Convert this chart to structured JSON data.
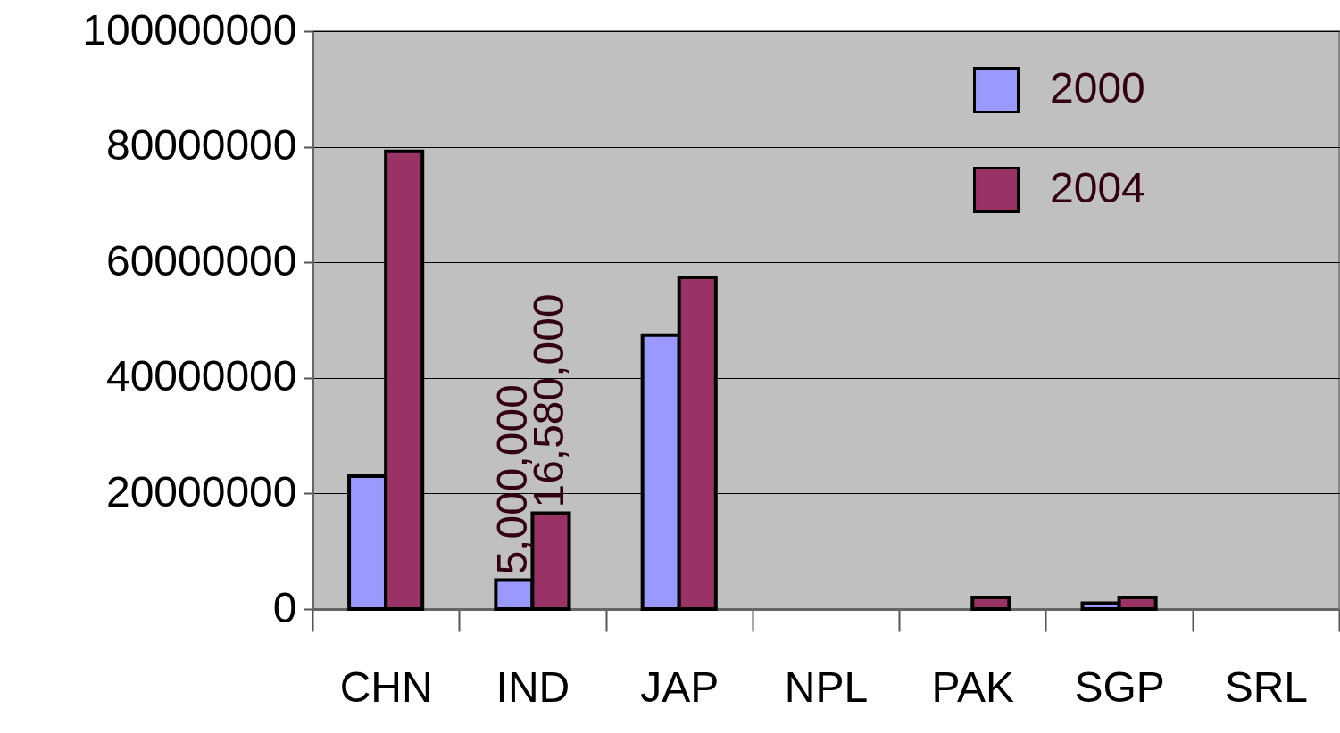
{
  "chart_data": {
    "type": "bar",
    "categories": [
      "CHN",
      "IND",
      "JAP",
      "NPL",
      "PAK",
      "SGP",
      "SRL"
    ],
    "series": [
      {
        "name": "2000",
        "color": "#9999ff",
        "values": [
          23000000,
          5000000,
          47400000,
          null,
          null,
          1000000,
          null
        ],
        "value_labels": [
          null,
          "5,000,000",
          null,
          null,
          null,
          null,
          null
        ]
      },
      {
        "name": "2004",
        "color": "#993366",
        "values": [
          79200000,
          16580000,
          57400000,
          null,
          2000000,
          2000000,
          null
        ],
        "value_labels": [
          null,
          "16,580,000",
          null,
          null,
          null,
          null,
          null
        ]
      }
    ],
    "ylim": [
      0,
      100000000
    ],
    "yticks": [
      0,
      20000000,
      40000000,
      60000000,
      80000000,
      100000000
    ],
    "grid": "y",
    "legend": "top right"
  }
}
